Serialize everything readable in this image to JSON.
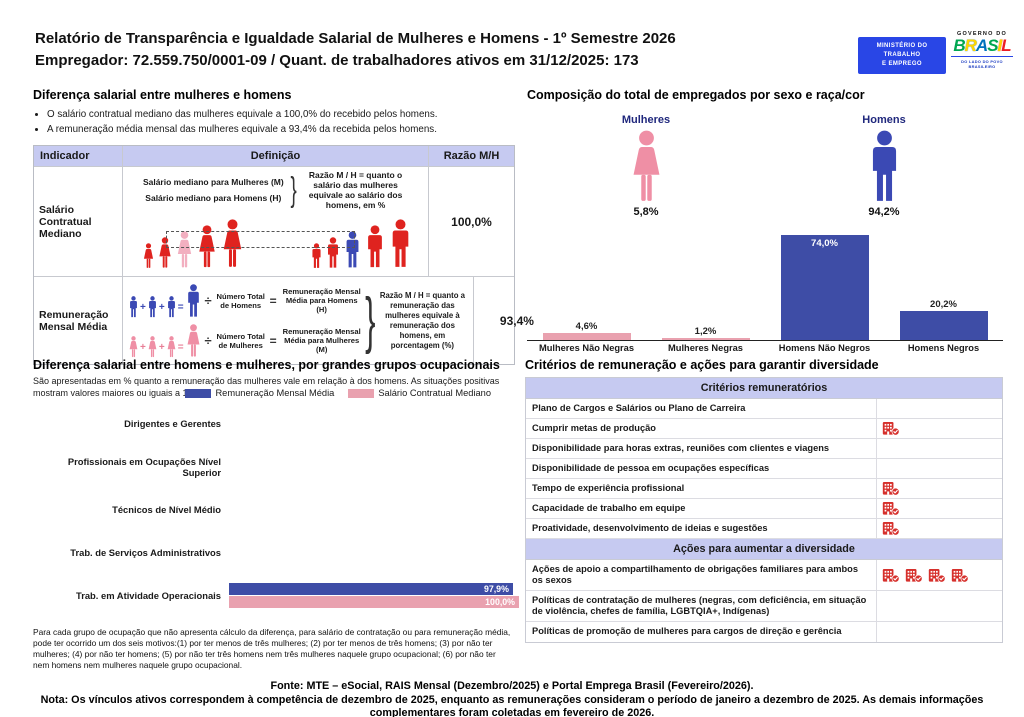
{
  "header": {
    "title": "Relatório de Transparência e Igualdade Salarial de Mulheres e Homens - 1º Semestre 2026",
    "subtitle": "Empregador: 72.559.750/0001-09 / Quant. de trabalhadores ativos em 31/12/2025: 173",
    "logo_mte": "MINISTÉRIO DO\nTRABALHO\nE EMPREGO",
    "logo_gov_top": "GOVERNO DO",
    "logo_gov_name": "BRASIL",
    "logo_gov_bottom": "DO LADO DO POVO BRASILEIRO"
  },
  "pay_gap": {
    "title": "Diferença salarial entre mulheres e homens",
    "bullets": [
      "O salário contratual mediano das mulheres equivale a 100,0% do recebido pelos homens.",
      "A remuneração média mensal das mulheres equivale a 93,4% da recebida pelos homens."
    ],
    "table": {
      "headers": [
        "Indicador",
        "Definição",
        "Razão M/H"
      ],
      "ops": {
        "plus": "+",
        "equals": "=",
        "divide": "÷"
      },
      "rows": [
        {
          "indicator": "Salário Contratual Mediano",
          "def_line1": "Salário mediano para Mulheres (M)",
          "def_line2": "Salário mediano para Homens (H)",
          "def_note": "Razão M / H = quanto o salário das mulheres equivale ao salário dos homens, em %",
          "ratio": "100,0%"
        },
        {
          "indicator": "Remuneração Mensal Média",
          "men_divisor": "Número Total de Homens",
          "men_result": "Remuneração Mensal Média para Homens (H)",
          "women_divisor": "Número Total de Mulheres",
          "women_result": "Remuneração Mensal Média para Mulheres (M)",
          "def_note": "Razão M / H = quanto a remuneração das mulheres equivale à remuneração dos homens, em porcentagem (%)",
          "ratio": "93,4%"
        }
      ]
    }
  },
  "composition": {
    "title": "Composição do total de empregados por sexo e raça/cor",
    "women_label": "Mulheres",
    "women_pct": "5,8%",
    "men_label": "Homens",
    "men_pct": "94,2%",
    "race_chart": {
      "categories": [
        "Mulheres Não Negras",
        "Mulheres Negras",
        "Homens Não Negros",
        "Homens Negros"
      ],
      "values": [
        4.6,
        1.2,
        74.0,
        20.2
      ],
      "labels": [
        "4,6%",
        "1,2%",
        "74,0%",
        "20,2%"
      ],
      "colors": [
        "#e9a1af",
        "#e9a1af",
        "#3e4da6",
        "#3e4da6"
      ]
    }
  },
  "occupational": {
    "title": "Diferença salarial entre homens e mulheres, por grandes grupos ocupacionais",
    "subtitle": "São apresentadas em % quanto a remuneração das mulheres vale em relação à dos homens. As situações positivas mostram valores maiores ou iguais a 100%",
    "legend": [
      {
        "label": "Remuneração Mensal Média",
        "color": "#3e4da6"
      },
      {
        "label": "Salário Contratual Mediano",
        "color": "#e9a1af"
      }
    ],
    "rows": [
      {
        "label": "Dirigentes e Gerentes",
        "mensal": null,
        "mensal_label": null,
        "mediano": null,
        "mediano_label": null
      },
      {
        "label": "Profissionais em Ocupações Nível Superior",
        "mensal": null,
        "mensal_label": null,
        "mediano": null,
        "mediano_label": null
      },
      {
        "label": "Técnicos de Nível Médio",
        "mensal": null,
        "mensal_label": null,
        "mediano": null,
        "mediano_label": null
      },
      {
        "label": "Trab. de Serviços Administrativos",
        "mensal": null,
        "mensal_label": null,
        "mediano": null,
        "mediano_label": null
      },
      {
        "label": "Trab. em Atividade Operacionais",
        "mensal": 97.9,
        "mensal_label": "97,9%",
        "mediano": 100.0,
        "mediano_label": "100,0%"
      }
    ],
    "footnote": "Para cada grupo de ocupação que não apresenta cálculo da diferença, para salário de contratação ou para remuneração média, pode ter ocorrido um dos seis motivos:(1) por ter menos de três mulheres; (2) por ter menos de três homens; (3) por não ter mulheres; (4) por não ter homens; (5) por não ter três homens nem três mulheres naquele grupo ocupacional; (6) por não ter nem homens nem mulheres naquele grupo ocupacional."
  },
  "criteria": {
    "title": "Critérios de remuneração e ações para garantir diversidade",
    "sections": [
      {
        "header": "Critérios remuneratórios",
        "items": [
          {
            "label": "Plano de Cargos e Salários ou Plano de Carreira",
            "icons": 0
          },
          {
            "label": "Cumprir metas de produção",
            "icons": 1
          },
          {
            "label": "Disponibilidade para horas extras, reuniões com clientes e viagens",
            "icons": 0
          },
          {
            "label": "Disponibilidade de pessoa em ocupações específicas",
            "icons": 0
          },
          {
            "label": "Tempo de experiência profissional",
            "icons": 1
          },
          {
            "label": "Capacidade de trabalho em equipe",
            "icons": 1
          },
          {
            "label": "Proatividade, desenvolvimento de ideias e sugestões",
            "icons": 1
          }
        ]
      },
      {
        "header": "Ações para aumentar a diversidade",
        "items": [
          {
            "label": "Ações de apoio a compartilhamento de obrigações familiares para ambos os sexos",
            "icons": 4
          },
          {
            "label": "Políticas de contratação de mulheres (negras, com deficiência, em situação de violência, chefes de família, LGBTQIA+, Indígenas)",
            "icons": 0
          },
          {
            "label": "Políticas de promoção de mulheres para cargos de direção e gerência",
            "icons": 0
          }
        ]
      }
    ]
  },
  "footer": {
    "fonte": "Fonte: MTE – eSocial, RAIS Mensal (Dezembro/2025) e Portal Emprega Brasil (Fevereiro/2026).",
    "nota": "Nota: Os vínculos ativos correspondem à competência de dezembro de 2025, enquanto as remunerações consideram o período de janeiro a dezembro de 2025. As demais informações complementares foram coletadas em fevereiro de 2026."
  },
  "chart_data": [
    {
      "type": "bar",
      "title": "Composição do total de empregados por sexo e raça/cor",
      "categories": [
        "Mulheres Não Negras",
        "Mulheres Negras",
        "Homens Não Negros",
        "Homens Negros"
      ],
      "values": [
        4.6,
        1.2,
        74.0,
        20.2
      ],
      "ylabel": "%",
      "ylim": [
        0,
        80
      ],
      "grid": false,
      "annotations": {
        "Mulheres": 5.8,
        "Homens": 94.2
      }
    },
    {
      "type": "bar",
      "orientation": "horizontal",
      "title": "Diferença salarial entre homens e mulheres, por grandes grupos ocupacionais",
      "categories": [
        "Dirigentes e Gerentes",
        "Profissionais em Ocupações Nível Superior",
        "Técnicos de Nível Médio",
        "Trab. de Serviços Administrativos",
        "Trab. em Atividade Operacionais"
      ],
      "series": [
        {
          "name": "Remuneração Mensal Média",
          "values": [
            null,
            null,
            null,
            null,
            97.9
          ]
        },
        {
          "name": "Salário Contratual Mediano",
          "values": [
            null,
            null,
            null,
            null,
            100.0
          ]
        }
      ],
      "xlim": [
        0,
        100
      ],
      "legend_position": "top",
      "grid": false
    }
  ]
}
